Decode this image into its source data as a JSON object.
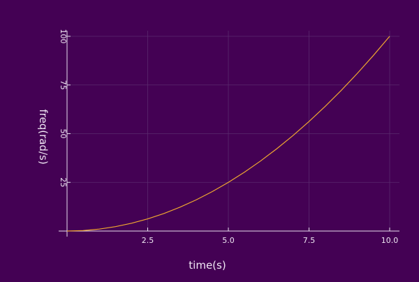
{
  "colors": {
    "background": "#440154",
    "line": "#f0a830",
    "axis": "#e8e0ee",
    "grid": "#5a2a6e",
    "text": "#f0e8f4"
  },
  "chart_data": {
    "type": "line",
    "xlabel": "time(s)",
    "ylabel": "freq(rad/s)",
    "xlim": [
      0,
      10.2
    ],
    "ylim": [
      0,
      102
    ],
    "grid": true,
    "legend": "none",
    "x_ticks": [
      {
        "value": 2.5,
        "label": "2.5"
      },
      {
        "value": 5.0,
        "label": "5.0"
      },
      {
        "value": 7.5,
        "label": "7.5"
      },
      {
        "value": 10.0,
        "label": "10.0"
      }
    ],
    "y_ticks": [
      {
        "value": 25,
        "label": "25"
      },
      {
        "value": 50,
        "label": "50"
      },
      {
        "value": 75,
        "label": "75"
      },
      {
        "value": 100,
        "label": "100"
      }
    ],
    "series": [
      {
        "x": [
          0,
          0.5,
          1,
          1.5,
          2,
          2.5,
          3,
          3.5,
          4,
          4.5,
          5,
          5.5,
          6,
          6.5,
          7,
          7.5,
          8,
          8.5,
          9,
          9.5,
          10
        ],
        "y": [
          0,
          0.25,
          1,
          2.25,
          4,
          6.25,
          9,
          12.25,
          16,
          20.25,
          25,
          30.25,
          36,
          42.25,
          49,
          56.25,
          64,
          72.25,
          81,
          90.25,
          100
        ]
      }
    ]
  }
}
